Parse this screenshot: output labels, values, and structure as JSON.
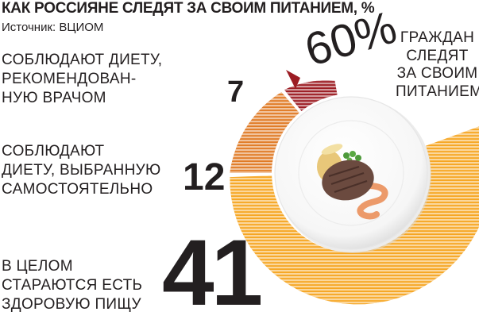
{
  "title": "КАК РОССИЯНЕ СЛЕДЯТ ЗА СВОИМ ПИТАНИЕМ, %",
  "source": "Источник: ВЦИОМ",
  "categories": [
    {
      "lines": [
        "СОБЛЮДАЮТ ДИЕТУ,",
        "РЕКОМЕНДОВАН-",
        "НУЮ ВРАЧОМ"
      ],
      "value": "7"
    },
    {
      "lines": [
        "СОБЛЮДАЮТ",
        "ДИЕТУ, ВЫБРАННУЮ",
        "САМОСТОЯТЕЛЬНО"
      ],
      "value": "12"
    },
    {
      "lines": [
        "В ЦЕЛОМ",
        "СТАРАЮТСЯ ЕСТЬ",
        "ЗДОРОВУЮ ПИЩУ"
      ],
      "value": "41"
    }
  ],
  "total": {
    "value": "60%",
    "lines": [
      "ГРАЖДАН",
      "СЛЕДЯТ",
      "ЗА СВОИМ",
      "ПИТАНИЕМ"
    ]
  },
  "colors": {
    "band1": "#9c1c23",
    "band2": "#e07b26",
    "band3": "#f6a623",
    "plate": "#ffffff"
  },
  "chart_data": {
    "type": "pie",
    "title": "КАК РОССИЯНЕ СЛЕДЯТ ЗА СВОИМ ПИТАНИЕМ, %",
    "categories": [
      "СОБЛЮДАЮТ ДИЕТУ, РЕКОМЕНДОВАННУЮ ВРАЧОМ",
      "СОБЛЮДАЮТ ДИЕТУ, ВЫБРАННУЮ САМОСТОЯТЕЛЬНО",
      "В ЦЕЛОМ СТАРАЮТСЯ ЕСТЬ ЗДОРОВУЮ ПИЩУ"
    ],
    "values": [
      7,
      12,
      41
    ],
    "total": 60,
    "unit": "%"
  }
}
